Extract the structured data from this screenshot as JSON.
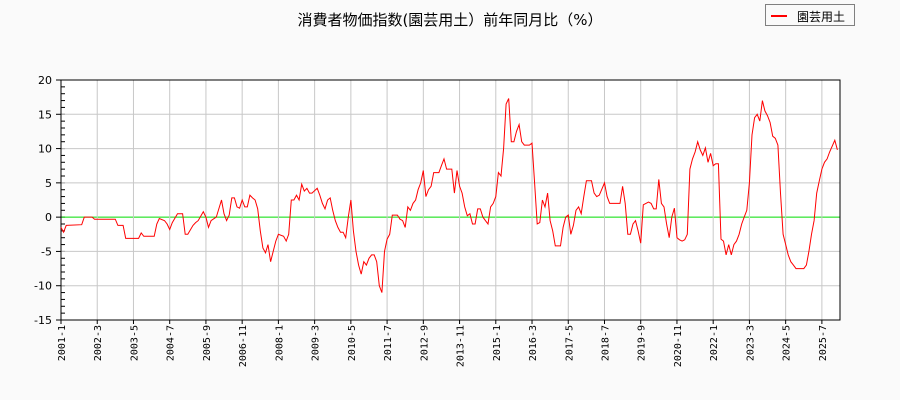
{
  "chart_data": {
    "type": "line",
    "title": "消費者物価指数(園芸用土）前年同月比（%）",
    "xlabel": "",
    "ylabel": "",
    "ylim": [
      -15,
      20
    ],
    "xlim": [
      "2001-01",
      "2026-02"
    ],
    "yticks": [
      -15,
      -10,
      -5,
      0,
      5,
      10,
      15,
      20
    ],
    "xticks": [
      "2001-1",
      "2002-3",
      "2003-5",
      "2004-7",
      "2005-9",
      "2006-11",
      "2008-1",
      "2009-3",
      "2010-5",
      "2011-7",
      "2012-9",
      "2013-11",
      "2015-1",
      "2016-3",
      "2017-5",
      "2018-7",
      "2019-9",
      "2020-11",
      "2022-1",
      "2023-3",
      "2024-5",
      "2025-7"
    ],
    "grid": true,
    "legend_position": "top-right",
    "zero_line_color": "#00dd00",
    "series": [
      {
        "name": "園芸用土",
        "color": "#ff0000",
        "points": [
          [
            "2001-01",
            -1.5
          ],
          [
            "2001-02",
            -2.2
          ],
          [
            "2001-03",
            -1.2
          ],
          [
            "2001-09",
            -1.1
          ],
          [
            "2001-10",
            0
          ],
          [
            "2002-01",
            0
          ],
          [
            "2002-02",
            -0.3
          ],
          [
            "2002-10",
            -0.3
          ],
          [
            "2002-11",
            -1.2
          ],
          [
            "2003-01",
            -1.2
          ],
          [
            "2003-02",
            -3.1
          ],
          [
            "2003-07",
            -3.1
          ],
          [
            "2003-08",
            -2.3
          ],
          [
            "2003-09",
            -2.8
          ],
          [
            "2004-01",
            -2.8
          ],
          [
            "2004-02",
            -1.0
          ],
          [
            "2004-03",
            -0.2
          ],
          [
            "2004-05",
            -0.5
          ],
          [
            "2004-06",
            -1.0
          ],
          [
            "2004-07",
            -1.8
          ],
          [
            "2004-08",
            -0.8
          ],
          [
            "2004-10",
            0.5
          ],
          [
            "2004-12",
            0.5
          ],
          [
            "2005-01",
            -2.5
          ],
          [
            "2005-02",
            -2.5
          ],
          [
            "2005-04",
            -1.2
          ],
          [
            "2005-05",
            -0.8
          ],
          [
            "2005-06",
            -0.5
          ],
          [
            "2005-08",
            0.8
          ],
          [
            "2005-09",
            0
          ],
          [
            "2005-10",
            -1.5
          ],
          [
            "2005-11",
            -0.5
          ],
          [
            "2006-01",
            0
          ],
          [
            "2006-03",
            2.5
          ],
          [
            "2006-04",
            0.5
          ],
          [
            "2006-05",
            -0.5
          ],
          [
            "2006-06",
            0.3
          ],
          [
            "2006-07",
            2.8
          ],
          [
            "2006-08",
            2.8
          ],
          [
            "2006-09",
            1.5
          ],
          [
            "2006-10",
            1.3
          ],
          [
            "2006-11",
            2.5
          ],
          [
            "2006-12",
            1.5
          ],
          [
            "2007-01",
            1.5
          ],
          [
            "2007-02",
            3.2
          ],
          [
            "2007-03",
            2.8
          ],
          [
            "2007-04",
            2.5
          ],
          [
            "2007-05",
            1.2
          ],
          [
            "2007-06",
            -2
          ],
          [
            "2007-07",
            -4.5
          ],
          [
            "2007-08",
            -5.2
          ],
          [
            "2007-09",
            -4
          ],
          [
            "2007-10",
            -6.5
          ],
          [
            "2007-11",
            -5
          ],
          [
            "2007-12",
            -3.5
          ],
          [
            "2008-01",
            -2.5
          ],
          [
            "2008-03",
            -2.8
          ],
          [
            "2008-04",
            -3.5
          ],
          [
            "2008-05",
            -2.5
          ],
          [
            "2008-06",
            2.5
          ],
          [
            "2008-07",
            2.5
          ],
          [
            "2008-08",
            3.2
          ],
          [
            "2008-09",
            2.5
          ],
          [
            "2008-10",
            4.8
          ],
          [
            "2008-11",
            3.8
          ],
          [
            "2008-12",
            4.2
          ],
          [
            "2009-01",
            3.5
          ],
          [
            "2009-02",
            3.5
          ],
          [
            "2009-04",
            4.2
          ],
          [
            "2009-05",
            3.2
          ],
          [
            "2009-06",
            2.0
          ],
          [
            "2009-07",
            1.2
          ],
          [
            "2009-08",
            2.5
          ],
          [
            "2009-09",
            2.8
          ],
          [
            "2009-10",
            1.0
          ],
          [
            "2009-11",
            -0.5
          ],
          [
            "2009-12",
            -1.5
          ],
          [
            "2010-01",
            -2.2
          ],
          [
            "2010-02",
            -2.2
          ],
          [
            "2010-03",
            -3
          ],
          [
            "2010-04",
            0
          ],
          [
            "2010-05",
            2.5
          ],
          [
            "2010-06",
            -2
          ],
          [
            "2010-07",
            -5
          ],
          [
            "2010-08",
            -7
          ],
          [
            "2010-09",
            -8.3
          ],
          [
            "2010-10",
            -6.5
          ],
          [
            "2010-11",
            -7
          ],
          [
            "2010-12",
            -6
          ],
          [
            "2011-01",
            -5.5
          ],
          [
            "2011-02",
            -5.5
          ],
          [
            "2011-03",
            -6.5
          ],
          [
            "2011-04",
            -10
          ],
          [
            "2011-05",
            -11
          ],
          [
            "2011-06",
            -5
          ],
          [
            "2011-07",
            -3.2
          ],
          [
            "2011-08",
            -2.5
          ],
          [
            "2011-09",
            0.3
          ],
          [
            "2011-11",
            0.3
          ],
          [
            "2011-12",
            -0.3
          ],
          [
            "2012-01",
            -0.5
          ],
          [
            "2012-02",
            -1.5
          ],
          [
            "2012-03",
            1.5
          ],
          [
            "2012-04",
            1
          ],
          [
            "2012-05",
            2
          ],
          [
            "2012-06",
            2.5
          ],
          [
            "2012-07",
            4
          ],
          [
            "2012-08",
            5
          ],
          [
            "2012-09",
            6.8
          ],
          [
            "2012-10",
            3
          ],
          [
            "2012-11",
            4
          ],
          [
            "2012-12",
            4.5
          ],
          [
            "2013-01",
            6.5
          ],
          [
            "2013-03",
            6.5
          ],
          [
            "2013-04",
            7.5
          ],
          [
            "2013-05",
            8.5
          ],
          [
            "2013-06",
            7
          ],
          [
            "2013-08",
            7
          ],
          [
            "2013-09",
            3.5
          ],
          [
            "2013-10",
            6.8
          ],
          [
            "2013-11",
            4.5
          ],
          [
            "2013-12",
            3.5
          ],
          [
            "2014-01",
            1.5
          ],
          [
            "2014-02",
            0.2
          ],
          [
            "2014-03",
            0.5
          ],
          [
            "2014-04",
            -1
          ],
          [
            "2014-05",
            -1
          ],
          [
            "2014-06",
            1.2
          ],
          [
            "2014-07",
            1.2
          ],
          [
            "2014-08",
            0
          ],
          [
            "2014-09",
            -0.5
          ],
          [
            "2014-10",
            -1
          ],
          [
            "2014-11",
            1.5
          ],
          [
            "2014-12",
            2
          ],
          [
            "2015-01",
            3
          ],
          [
            "2015-02",
            6.5
          ],
          [
            "2015-03",
            6
          ],
          [
            "2015-04",
            10
          ],
          [
            "2015-05",
            16.5
          ],
          [
            "2015-06",
            17.3
          ],
          [
            "2015-07",
            11
          ],
          [
            "2015-08",
            11
          ],
          [
            "2015-09",
            12.5
          ],
          [
            "2015-10",
            13.5
          ],
          [
            "2015-11",
            11
          ],
          [
            "2015-12",
            10.5
          ],
          [
            "2016-02",
            10.5
          ],
          [
            "2016-03",
            10.8
          ],
          [
            "2016-04",
            5
          ],
          [
            "2016-05",
            -1
          ],
          [
            "2016-06",
            -0.8
          ],
          [
            "2016-07",
            2.5
          ],
          [
            "2016-08",
            1.5
          ],
          [
            "2016-09",
            3.5
          ],
          [
            "2016-10",
            -0.5
          ],
          [
            "2016-11",
            -2
          ],
          [
            "2016-12",
            -4.2
          ],
          [
            "2017-02",
            -4.2
          ],
          [
            "2017-03",
            -1.5
          ],
          [
            "2017-04",
            0
          ],
          [
            "2017-05",
            0.3
          ],
          [
            "2017-06",
            -2.5
          ],
          [
            "2017-07",
            -1.2
          ],
          [
            "2017-08",
            1
          ],
          [
            "2017-09",
            1.5
          ],
          [
            "2017-10",
            0.5
          ],
          [
            "2017-11",
            3
          ],
          [
            "2017-12",
            5.3
          ],
          [
            "2018-02",
            5.3
          ],
          [
            "2018-03",
            3.5
          ],
          [
            "2018-04",
            3
          ],
          [
            "2018-05",
            3.2
          ],
          [
            "2018-07",
            5
          ],
          [
            "2018-08",
            3
          ],
          [
            "2018-09",
            2
          ],
          [
            "2018-10",
            2
          ],
          [
            "2019-01",
            2
          ],
          [
            "2019-02",
            4.5
          ],
          [
            "2019-03",
            2
          ],
          [
            "2019-04",
            -2.5
          ],
          [
            "2019-05",
            -2.5
          ],
          [
            "2019-06",
            -1
          ],
          [
            "2019-07",
            -0.5
          ],
          [
            "2019-08",
            -2
          ],
          [
            "2019-09",
            -3.8
          ],
          [
            "2019-10",
            1.8
          ],
          [
            "2019-12",
            2.2
          ],
          [
            "2020-01",
            2
          ],
          [
            "2020-02",
            1.2
          ],
          [
            "2020-03",
            1.2
          ],
          [
            "2020-04",
            5.5
          ],
          [
            "2020-05",
            2
          ],
          [
            "2020-06",
            1.5
          ],
          [
            "2020-07",
            -1
          ],
          [
            "2020-08",
            -3
          ],
          [
            "2020-09",
            0
          ],
          [
            "2020-10",
            1.3
          ],
          [
            "2020-11",
            -3
          ],
          [
            "2020-12",
            -3.3
          ],
          [
            "2021-01",
            -3.5
          ],
          [
            "2021-02",
            -3.3
          ],
          [
            "2021-03",
            -2.5
          ],
          [
            "2021-04",
            7
          ],
          [
            "2021-05",
            8.5
          ],
          [
            "2021-06",
            9.5
          ],
          [
            "2021-07",
            11
          ],
          [
            "2021-08",
            9.8
          ],
          [
            "2021-09",
            9
          ],
          [
            "2021-10",
            10.1
          ],
          [
            "2021-11",
            8
          ],
          [
            "2021-12",
            9.3
          ],
          [
            "2022-01",
            7.5
          ],
          [
            "2022-02",
            7.8
          ],
          [
            "2022-03",
            7.8
          ],
          [
            "2022-04",
            -3.2
          ],
          [
            "2022-05",
            -3.5
          ],
          [
            "2022-06",
            -5.5
          ],
          [
            "2022-07",
            -4
          ],
          [
            "2022-08",
            -5.5
          ],
          [
            "2022-09",
            -4
          ],
          [
            "2022-10",
            -3.5
          ],
          [
            "2022-11",
            -2.5
          ],
          [
            "2022-12",
            -1
          ],
          [
            "2023-01",
            0
          ],
          [
            "2023-02",
            1
          ],
          [
            "2023-03",
            5
          ],
          [
            "2023-04",
            12
          ],
          [
            "2023-05",
            14.5
          ],
          [
            "2023-06",
            15
          ],
          [
            "2023-07",
            14
          ],
          [
            "2023-08",
            17
          ],
          [
            "2023-09",
            15.5
          ],
          [
            "2023-10",
            14.8
          ],
          [
            "2023-11",
            13.8
          ],
          [
            "2023-12",
            11.8
          ],
          [
            "2024-01",
            11.5
          ],
          [
            "2024-02",
            10.5
          ],
          [
            "2024-03",
            3.5
          ],
          [
            "2024-04",
            -2.5
          ],
          [
            "2024-05",
            -4
          ],
          [
            "2024-06",
            -5.5
          ],
          [
            "2024-07",
            -6.5
          ],
          [
            "2024-08",
            -7
          ],
          [
            "2024-09",
            -7.5
          ],
          [
            "2024-10",
            -7.5
          ],
          [
            "2024-12",
            -7.5
          ],
          [
            "2025-01",
            -7
          ],
          [
            "2025-02",
            -5
          ],
          [
            "2025-03",
            -2.5
          ],
          [
            "2025-04",
            -0.5
          ],
          [
            "2025-05",
            3.5
          ],
          [
            "2025-06",
            5.3
          ],
          [
            "2025-07",
            7
          ],
          [
            "2025-08",
            8
          ],
          [
            "2025-09",
            8.5
          ],
          [
            "2025-10",
            9.5
          ],
          [
            "2025-12",
            11.2
          ],
          [
            "2026-01",
            9.8
          ]
        ]
      }
    ]
  }
}
